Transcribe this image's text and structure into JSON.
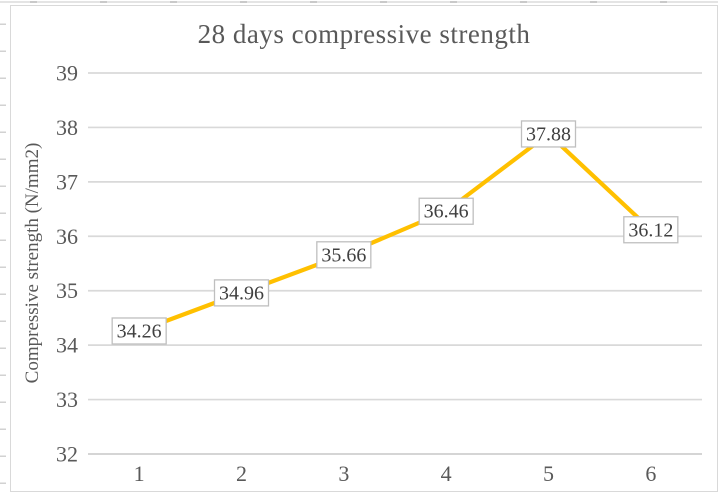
{
  "chart_data": {
    "type": "line",
    "title": "28 days compressive strength",
    "xlabel": "",
    "ylabel": "Compressive strength (N/mm2)",
    "categories": [
      "1",
      "2",
      "3",
      "4",
      "5",
      "6"
    ],
    "values": [
      34.26,
      34.96,
      35.66,
      36.46,
      37.88,
      36.12
    ],
    "data_labels": [
      "34.26",
      "34.96",
      "35.66",
      "36.46",
      "37.88",
      "36.12"
    ],
    "ylim": [
      32,
      39
    ],
    "ytick_step": 1,
    "ytick_labels": [
      "32",
      "33",
      "34",
      "35",
      "36",
      "37",
      "38",
      "39"
    ],
    "grid": true,
    "legend": "none",
    "line_color": "#FFC000",
    "gridline_color": "#D9D9D9",
    "axis_line_color": "#CFCFCF",
    "tick_label_color": "#595959",
    "data_label_text_color": "#404040",
    "data_label_border_color": "#BFBFBF",
    "data_label_fill": "#FFFFFF",
    "title_color": "#595959"
  }
}
